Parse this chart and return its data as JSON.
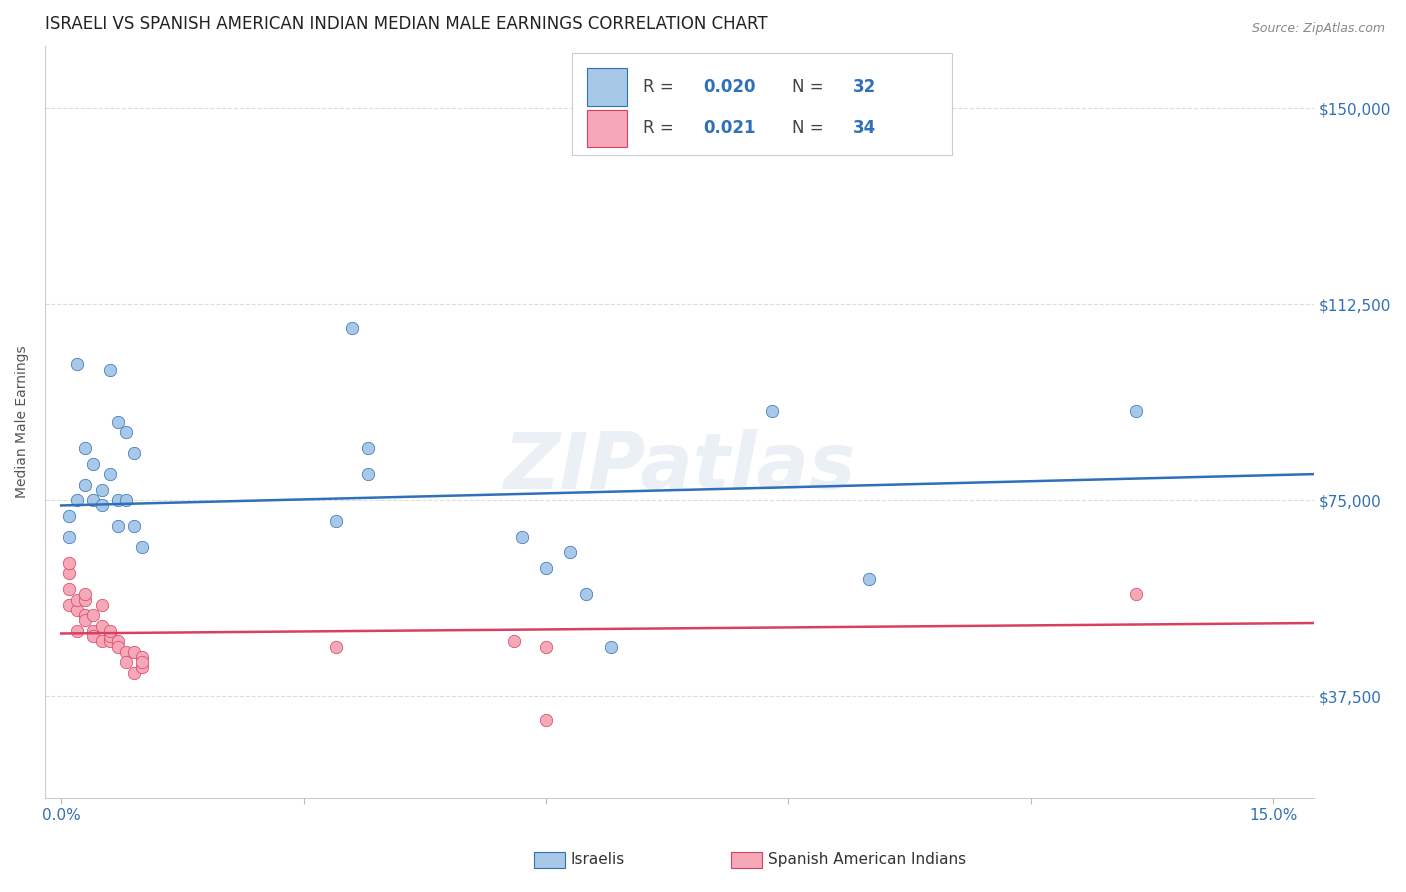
{
  "title": "ISRAELI VS SPANISH AMERICAN INDIAN MEDIAN MALE EARNINGS CORRELATION CHART",
  "source": "Source: ZipAtlas.com",
  "ylabel": "Median Male Earnings",
  "xlabel": "",
  "watermark": "ZIPatlas",
  "legend_israeli": {
    "R": "0.020",
    "N": "32"
  },
  "legend_spanish": {
    "R": "0.021",
    "N": "34"
  },
  "legend_label_israeli": "Israelis",
  "legend_label_spanish": "Spanish American Indians",
  "xlim": [
    -0.002,
    0.155
  ],
  "ylim": [
    18000,
    162000
  ],
  "yticks": [
    37500,
    75000,
    112500,
    150000
  ],
  "xticks": [
    0.0,
    0.03,
    0.06,
    0.09,
    0.12,
    0.15
  ],
  "xtick_labels": [
    "0.0%",
    "",
    "",
    "",
    "",
    "15.0%"
  ],
  "ytick_labels": [
    "$37,500",
    "$75,000",
    "$112,500",
    "$150,000"
  ],
  "color_israeli": "#a8c8e8",
  "color_spanish": "#f4a8b8",
  "color_line_israeli": "#3070b8",
  "color_line_spanish": "#d84060",
  "color_tick": "#3070b8",
  "israeli_x": [
    0.001,
    0.001,
    0.002,
    0.002,
    0.003,
    0.003,
    0.004,
    0.004,
    0.005,
    0.005,
    0.006,
    0.006,
    0.007,
    0.007,
    0.007,
    0.008,
    0.008,
    0.009,
    0.009,
    0.01,
    0.034,
    0.036,
    0.038,
    0.038,
    0.057,
    0.06,
    0.063,
    0.065,
    0.068,
    0.088,
    0.1,
    0.133
  ],
  "israeli_y": [
    68000,
    72000,
    101000,
    75000,
    85000,
    78000,
    82000,
    75000,
    77000,
    74000,
    100000,
    80000,
    90000,
    75000,
    70000,
    88000,
    75000,
    84000,
    70000,
    66000,
    71000,
    108000,
    85000,
    80000,
    68000,
    62000,
    65000,
    57000,
    47000,
    92000,
    60000,
    92000
  ],
  "spanish_x": [
    0.001,
    0.001,
    0.001,
    0.001,
    0.002,
    0.002,
    0.002,
    0.003,
    0.003,
    0.003,
    0.003,
    0.004,
    0.004,
    0.004,
    0.005,
    0.005,
    0.005,
    0.006,
    0.006,
    0.006,
    0.007,
    0.007,
    0.008,
    0.008,
    0.009,
    0.009,
    0.01,
    0.01,
    0.01,
    0.034,
    0.056,
    0.06,
    0.06,
    0.133
  ],
  "spanish_y": [
    61000,
    63000,
    58000,
    55000,
    54000,
    50000,
    56000,
    56000,
    53000,
    52000,
    57000,
    50000,
    53000,
    49000,
    55000,
    48000,
    51000,
    48000,
    49000,
    50000,
    48000,
    47000,
    46000,
    44000,
    42000,
    46000,
    43000,
    45000,
    44000,
    47000,
    48000,
    47000,
    33000,
    57000
  ],
  "israeli_trend_x": [
    0.0,
    0.155
  ],
  "israeli_trend_y": [
    74000,
    80000
  ],
  "spanish_trend_x": [
    0.0,
    0.155
  ],
  "spanish_trend_y": [
    49500,
    51500
  ],
  "background_color": "#ffffff",
  "grid_color": "#dddddd",
  "title_fontsize": 12,
  "axis_label_fontsize": 10,
  "tick_fontsize": 11,
  "marker_size": 80,
  "marker_edge_width": 0.5
}
